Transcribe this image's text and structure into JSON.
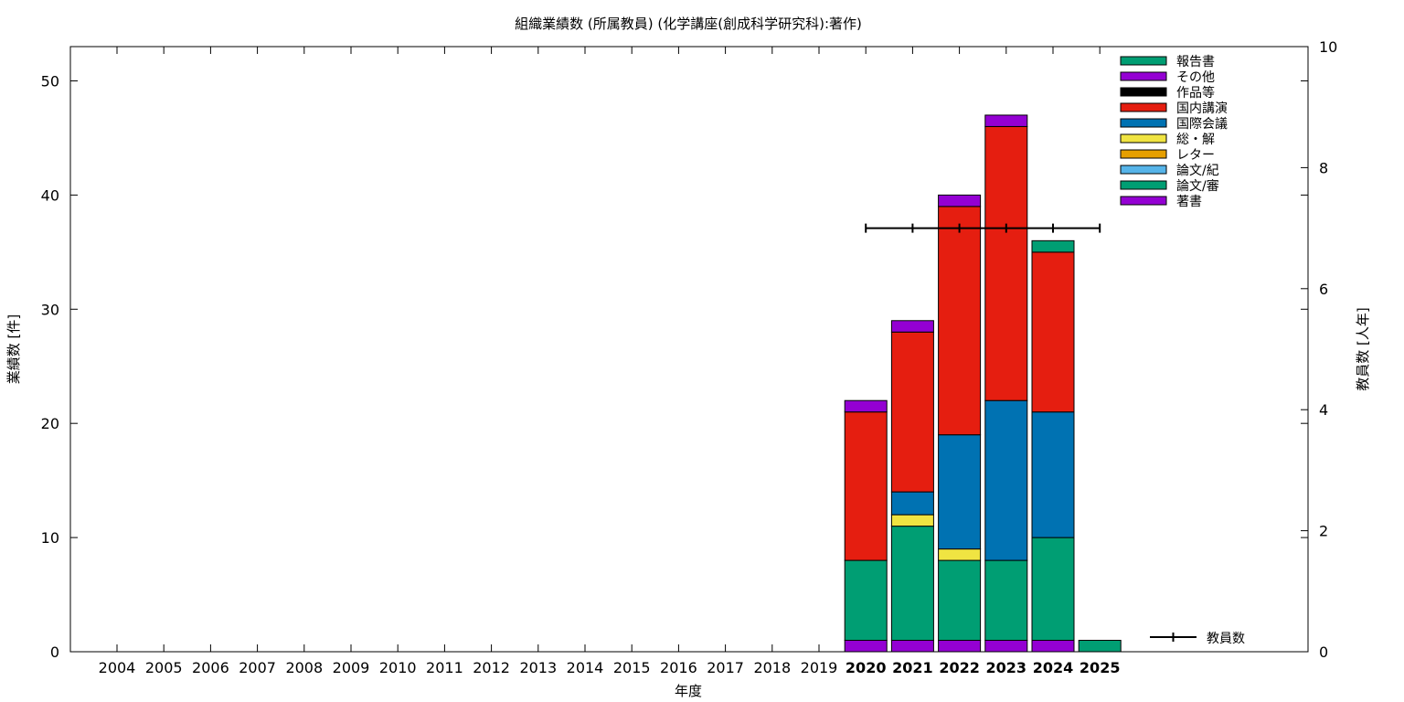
{
  "chart_data": {
    "type": "bar",
    "stacked": true,
    "title": "組織業績数 (所属教員) (化学講座(創成科学研究科):著作)",
    "xlabel": "年度",
    "ylabel": "業績数 [件]",
    "y2label": "教員数 [人年]",
    "ylim": [
      0,
      53
    ],
    "y2lim": [
      0,
      10
    ],
    "yticks": [
      0,
      10,
      20,
      30,
      40,
      50
    ],
    "y2ticks": [
      0,
      2,
      4,
      6,
      8,
      10
    ],
    "grid": false,
    "legend_position": "top-right",
    "categories": [
      "2004",
      "2005",
      "2006",
      "2007",
      "2008",
      "2009",
      "2010",
      "2011",
      "2012",
      "2013",
      "2014",
      "2015",
      "2016",
      "2017",
      "2018",
      "2019",
      "2020",
      "2021",
      "2022",
      "2023",
      "2024",
      "2025"
    ],
    "bold_categories": [
      "2020",
      "2021",
      "2022",
      "2023",
      "2024",
      "2025"
    ],
    "series": [
      {
        "name": "著書",
        "color": "#9400d3",
        "values": [
          0,
          0,
          0,
          0,
          0,
          0,
          0,
          0,
          0,
          0,
          0,
          0,
          0,
          0,
          0,
          0,
          1,
          1,
          1,
          1,
          1,
          0
        ]
      },
      {
        "name": "論文/審",
        "color": "#009e73",
        "values": [
          0,
          0,
          0,
          0,
          0,
          0,
          0,
          0,
          0,
          0,
          0,
          0,
          0,
          0,
          0,
          0,
          7,
          10,
          7,
          7,
          9,
          0
        ]
      },
      {
        "name": "論文/紀",
        "color": "#56b4e9",
        "values": [
          0,
          0,
          0,
          0,
          0,
          0,
          0,
          0,
          0,
          0,
          0,
          0,
          0,
          0,
          0,
          0,
          0,
          0,
          0,
          0,
          0,
          0
        ]
      },
      {
        "name": "レター",
        "color": "#e69f00",
        "values": [
          0,
          0,
          0,
          0,
          0,
          0,
          0,
          0,
          0,
          0,
          0,
          0,
          0,
          0,
          0,
          0,
          0,
          0,
          0,
          0,
          0,
          0
        ]
      },
      {
        "name": "総・解",
        "color": "#f0e442",
        "values": [
          0,
          0,
          0,
          0,
          0,
          0,
          0,
          0,
          0,
          0,
          0,
          0,
          0,
          0,
          0,
          0,
          0,
          1,
          1,
          0,
          0,
          0
        ]
      },
      {
        "name": "国際会議",
        "color": "#0072b2",
        "values": [
          0,
          0,
          0,
          0,
          0,
          0,
          0,
          0,
          0,
          0,
          0,
          0,
          0,
          0,
          0,
          0,
          0,
          2,
          10,
          14,
          11,
          0
        ]
      },
      {
        "name": "国内講演",
        "color": "#e51e10",
        "values": [
          0,
          0,
          0,
          0,
          0,
          0,
          0,
          0,
          0,
          0,
          0,
          0,
          0,
          0,
          0,
          0,
          13,
          14,
          20,
          24,
          14,
          0
        ]
      },
      {
        "name": "作品等",
        "color": "#000000",
        "values": [
          0,
          0,
          0,
          0,
          0,
          0,
          0,
          0,
          0,
          0,
          0,
          0,
          0,
          0,
          0,
          0,
          0,
          0,
          0,
          0,
          0,
          0
        ]
      },
      {
        "name": "その他",
        "color": "#9400d3",
        "values": [
          0,
          0,
          0,
          0,
          0,
          0,
          0,
          0,
          0,
          0,
          0,
          0,
          0,
          0,
          0,
          0,
          1,
          1,
          1,
          1,
          0,
          0
        ]
      },
      {
        "name": "報告書",
        "color": "#009e73",
        "values": [
          0,
          0,
          0,
          0,
          0,
          0,
          0,
          0,
          0,
          0,
          0,
          0,
          0,
          0,
          0,
          0,
          0,
          0,
          0,
          0,
          1,
          1
        ]
      }
    ],
    "line_series": {
      "name": "教員数",
      "axis": "y2",
      "color": "#000000",
      "x": [
        "2020",
        "2021",
        "2022",
        "2023",
        "2024",
        "2025"
      ],
      "values": [
        7,
        7,
        7,
        7,
        7,
        7
      ]
    }
  }
}
